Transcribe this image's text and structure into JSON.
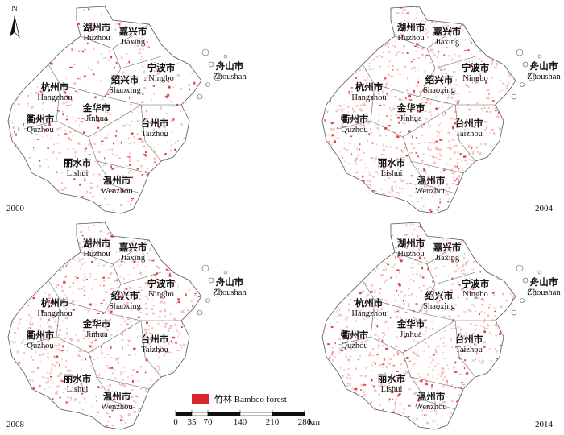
{
  "north": "N",
  "panels": [
    {
      "year": "2000"
    },
    {
      "year": "2004"
    },
    {
      "year": "2008"
    },
    {
      "year": "2014"
    }
  ],
  "cities": [
    {
      "zh": "湖州市",
      "en": "Huzhou"
    },
    {
      "zh": "嘉兴市",
      "en": "Jiaxing"
    },
    {
      "zh": "宁波市",
      "en": "Ningbo"
    },
    {
      "zh": "舟山市",
      "en": "Zhoushan"
    },
    {
      "zh": "绍兴市",
      "en": "Shaoxing"
    },
    {
      "zh": "杭州市",
      "en": "Hangzhou"
    },
    {
      "zh": "金华市",
      "en": "Jinhua"
    },
    {
      "zh": "衢州市",
      "en": "Quzhou"
    },
    {
      "zh": "台州市",
      "en": "Taizhou"
    },
    {
      "zh": "丽水市",
      "en": "Lishui"
    },
    {
      "zh": "温州市",
      "en": "Wenzhou"
    }
  ],
  "legend": {
    "label": "竹林 Bamboo forest"
  },
  "scale": {
    "ticks": [
      0,
      35,
      70,
      140,
      210,
      280
    ],
    "unit": "km"
  }
}
